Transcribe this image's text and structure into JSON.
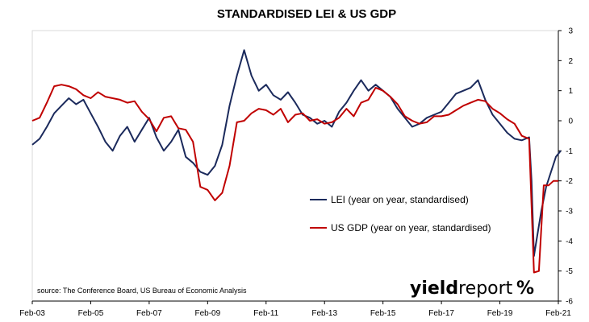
{
  "chart_data": {
    "type": "line",
    "title": "STANDARDISED LEI & US GDP",
    "x_ticks": [
      "Feb-03",
      "Feb-05",
      "Feb-07",
      "Feb-09",
      "Feb-11",
      "Feb-13",
      "Feb-15",
      "Feb-17",
      "Feb-19",
      "Feb-21"
    ],
    "xlim": [
      "2003-02",
      "2021-02"
    ],
    "ylim": [
      -6,
      3
    ],
    "y_ticks": [
      3,
      2,
      1,
      0,
      -1,
      -2,
      -3,
      -4,
      -5,
      -6
    ],
    "grid": false,
    "legend_position": "bottom-center-right",
    "source": "source: The Conference Board, US Bureau of Economic Analysis",
    "logo": {
      "text_bold": "yield",
      "text_light": "report",
      "symbol": "%",
      "symbol_colors": [
        "#d91f26",
        "#2e8b3a"
      ]
    },
    "series": [
      {
        "name": "LEI (year on year, standardised)",
        "color": "#1b2a5c",
        "points": [
          [
            "2003-02",
            -0.8
          ],
          [
            "2003-05",
            -0.6
          ],
          [
            "2003-08",
            -0.2
          ],
          [
            "2003-11",
            0.25
          ],
          [
            "2004-02",
            0.5
          ],
          [
            "2004-05",
            0.75
          ],
          [
            "2004-08",
            0.55
          ],
          [
            "2004-11",
            0.7
          ],
          [
            "2005-02",
            0.25
          ],
          [
            "2005-05",
            -0.2
          ],
          [
            "2005-08",
            -0.7
          ],
          [
            "2005-11",
            -1.0
          ],
          [
            "2006-02",
            -0.5
          ],
          [
            "2006-05",
            -0.2
          ],
          [
            "2006-08",
            -0.7
          ],
          [
            "2006-11",
            -0.3
          ],
          [
            "2007-02",
            0.1
          ],
          [
            "2007-05",
            -0.55
          ],
          [
            "2007-08",
            -1.0
          ],
          [
            "2007-11",
            -0.7
          ],
          [
            "2008-02",
            -0.3
          ],
          [
            "2008-05",
            -1.2
          ],
          [
            "2008-08",
            -1.4
          ],
          [
            "2008-11",
            -1.7
          ],
          [
            "2009-02",
            -1.8
          ],
          [
            "2009-05",
            -1.5
          ],
          [
            "2009-08",
            -0.8
          ],
          [
            "2009-11",
            0.5
          ],
          [
            "2010-02",
            1.5
          ],
          [
            "2010-05",
            2.35
          ],
          [
            "2010-08",
            1.5
          ],
          [
            "2010-11",
            1.0
          ],
          [
            "2011-02",
            1.2
          ],
          [
            "2011-05",
            0.85
          ],
          [
            "2011-08",
            0.7
          ],
          [
            "2011-11",
            0.95
          ],
          [
            "2012-02",
            0.6
          ],
          [
            "2012-05",
            0.2
          ],
          [
            "2012-08",
            0.1
          ],
          [
            "2012-11",
            -0.1
          ],
          [
            "2013-02",
            0.0
          ],
          [
            "2013-05",
            -0.2
          ],
          [
            "2013-08",
            0.3
          ],
          [
            "2013-11",
            0.6
          ],
          [
            "2014-02",
            1.0
          ],
          [
            "2014-05",
            1.35
          ],
          [
            "2014-08",
            1.0
          ],
          [
            "2014-11",
            1.2
          ],
          [
            "2015-02",
            1.0
          ],
          [
            "2015-05",
            0.8
          ],
          [
            "2015-08",
            0.4
          ],
          [
            "2015-11",
            0.1
          ],
          [
            "2016-02",
            -0.2
          ],
          [
            "2016-05",
            -0.1
          ],
          [
            "2016-08",
            0.1
          ],
          [
            "2016-11",
            0.2
          ],
          [
            "2017-02",
            0.3
          ],
          [
            "2017-05",
            0.6
          ],
          [
            "2017-08",
            0.9
          ],
          [
            "2017-11",
            1.0
          ],
          [
            "2018-02",
            1.1
          ],
          [
            "2018-05",
            1.35
          ],
          [
            "2018-08",
            0.7
          ],
          [
            "2018-11",
            0.2
          ],
          [
            "2019-02",
            -0.1
          ],
          [
            "2019-05",
            -0.4
          ],
          [
            "2019-08",
            -0.6
          ],
          [
            "2019-11",
            -0.65
          ],
          [
            "2020-02",
            -0.55
          ],
          [
            "2020-03",
            -2.0
          ],
          [
            "2020-04",
            -4.5
          ],
          [
            "2020-05",
            -4.0
          ],
          [
            "2020-07",
            -3.0
          ],
          [
            "2020-09",
            -2.2
          ],
          [
            "2020-11",
            -1.7
          ],
          [
            "2021-01",
            -1.2
          ],
          [
            "2021-03",
            -1.0
          ]
        ]
      },
      {
        "name": "US GDP (year on year, standardised)",
        "color": "#c00000",
        "points": [
          [
            "2003-02",
            0.0
          ],
          [
            "2003-05",
            0.1
          ],
          [
            "2003-08",
            0.6
          ],
          [
            "2003-11",
            1.15
          ],
          [
            "2004-02",
            1.2
          ],
          [
            "2004-05",
            1.15
          ],
          [
            "2004-08",
            1.05
          ],
          [
            "2004-11",
            0.85
          ],
          [
            "2005-02",
            0.75
          ],
          [
            "2005-05",
            0.95
          ],
          [
            "2005-08",
            0.8
          ],
          [
            "2005-11",
            0.75
          ],
          [
            "2006-02",
            0.7
          ],
          [
            "2006-05",
            0.6
          ],
          [
            "2006-08",
            0.65
          ],
          [
            "2006-11",
            0.3
          ],
          [
            "2007-02",
            0.05
          ],
          [
            "2007-05",
            -0.35
          ],
          [
            "2007-08",
            0.1
          ],
          [
            "2007-11",
            0.15
          ],
          [
            "2008-02",
            -0.25
          ],
          [
            "2008-05",
            -0.3
          ],
          [
            "2008-08",
            -0.7
          ],
          [
            "2008-11",
            -2.2
          ],
          [
            "2009-02",
            -2.3
          ],
          [
            "2009-05",
            -2.65
          ],
          [
            "2009-08",
            -2.4
          ],
          [
            "2009-11",
            -1.5
          ],
          [
            "2010-02",
            -0.05
          ],
          [
            "2010-05",
            0.0
          ],
          [
            "2010-08",
            0.25
          ],
          [
            "2010-11",
            0.4
          ],
          [
            "2011-02",
            0.35
          ],
          [
            "2011-05",
            0.2
          ],
          [
            "2011-08",
            0.4
          ],
          [
            "2011-11",
            -0.05
          ],
          [
            "2012-02",
            0.2
          ],
          [
            "2012-05",
            0.25
          ],
          [
            "2012-08",
            0.0
          ],
          [
            "2012-11",
            0.05
          ],
          [
            "2013-02",
            -0.1
          ],
          [
            "2013-05",
            -0.05
          ],
          [
            "2013-08",
            0.1
          ],
          [
            "2013-11",
            0.4
          ],
          [
            "2014-02",
            0.15
          ],
          [
            "2014-05",
            0.6
          ],
          [
            "2014-08",
            0.7
          ],
          [
            "2014-11",
            1.1
          ],
          [
            "2015-02",
            1.0
          ],
          [
            "2015-05",
            0.8
          ],
          [
            "2015-08",
            0.55
          ],
          [
            "2015-11",
            0.15
          ],
          [
            "2016-02",
            0.0
          ],
          [
            "2016-05",
            -0.1
          ],
          [
            "2016-08",
            -0.05
          ],
          [
            "2016-11",
            0.15
          ],
          [
            "2017-02",
            0.15
          ],
          [
            "2017-05",
            0.2
          ],
          [
            "2017-08",
            0.35
          ],
          [
            "2017-11",
            0.5
          ],
          [
            "2018-02",
            0.6
          ],
          [
            "2018-05",
            0.7
          ],
          [
            "2018-08",
            0.65
          ],
          [
            "2018-11",
            0.4
          ],
          [
            "2019-02",
            0.25
          ],
          [
            "2019-05",
            0.05
          ],
          [
            "2019-08",
            -0.1
          ],
          [
            "2019-11",
            -0.5
          ],
          [
            "2020-02",
            -0.6
          ],
          [
            "2020-04",
            -5.05
          ],
          [
            "2020-06",
            -5.0
          ],
          [
            "2020-08",
            -2.15
          ],
          [
            "2020-10",
            -2.15
          ],
          [
            "2020-12",
            -2.0
          ],
          [
            "2021-02",
            -2.0
          ]
        ]
      }
    ]
  }
}
